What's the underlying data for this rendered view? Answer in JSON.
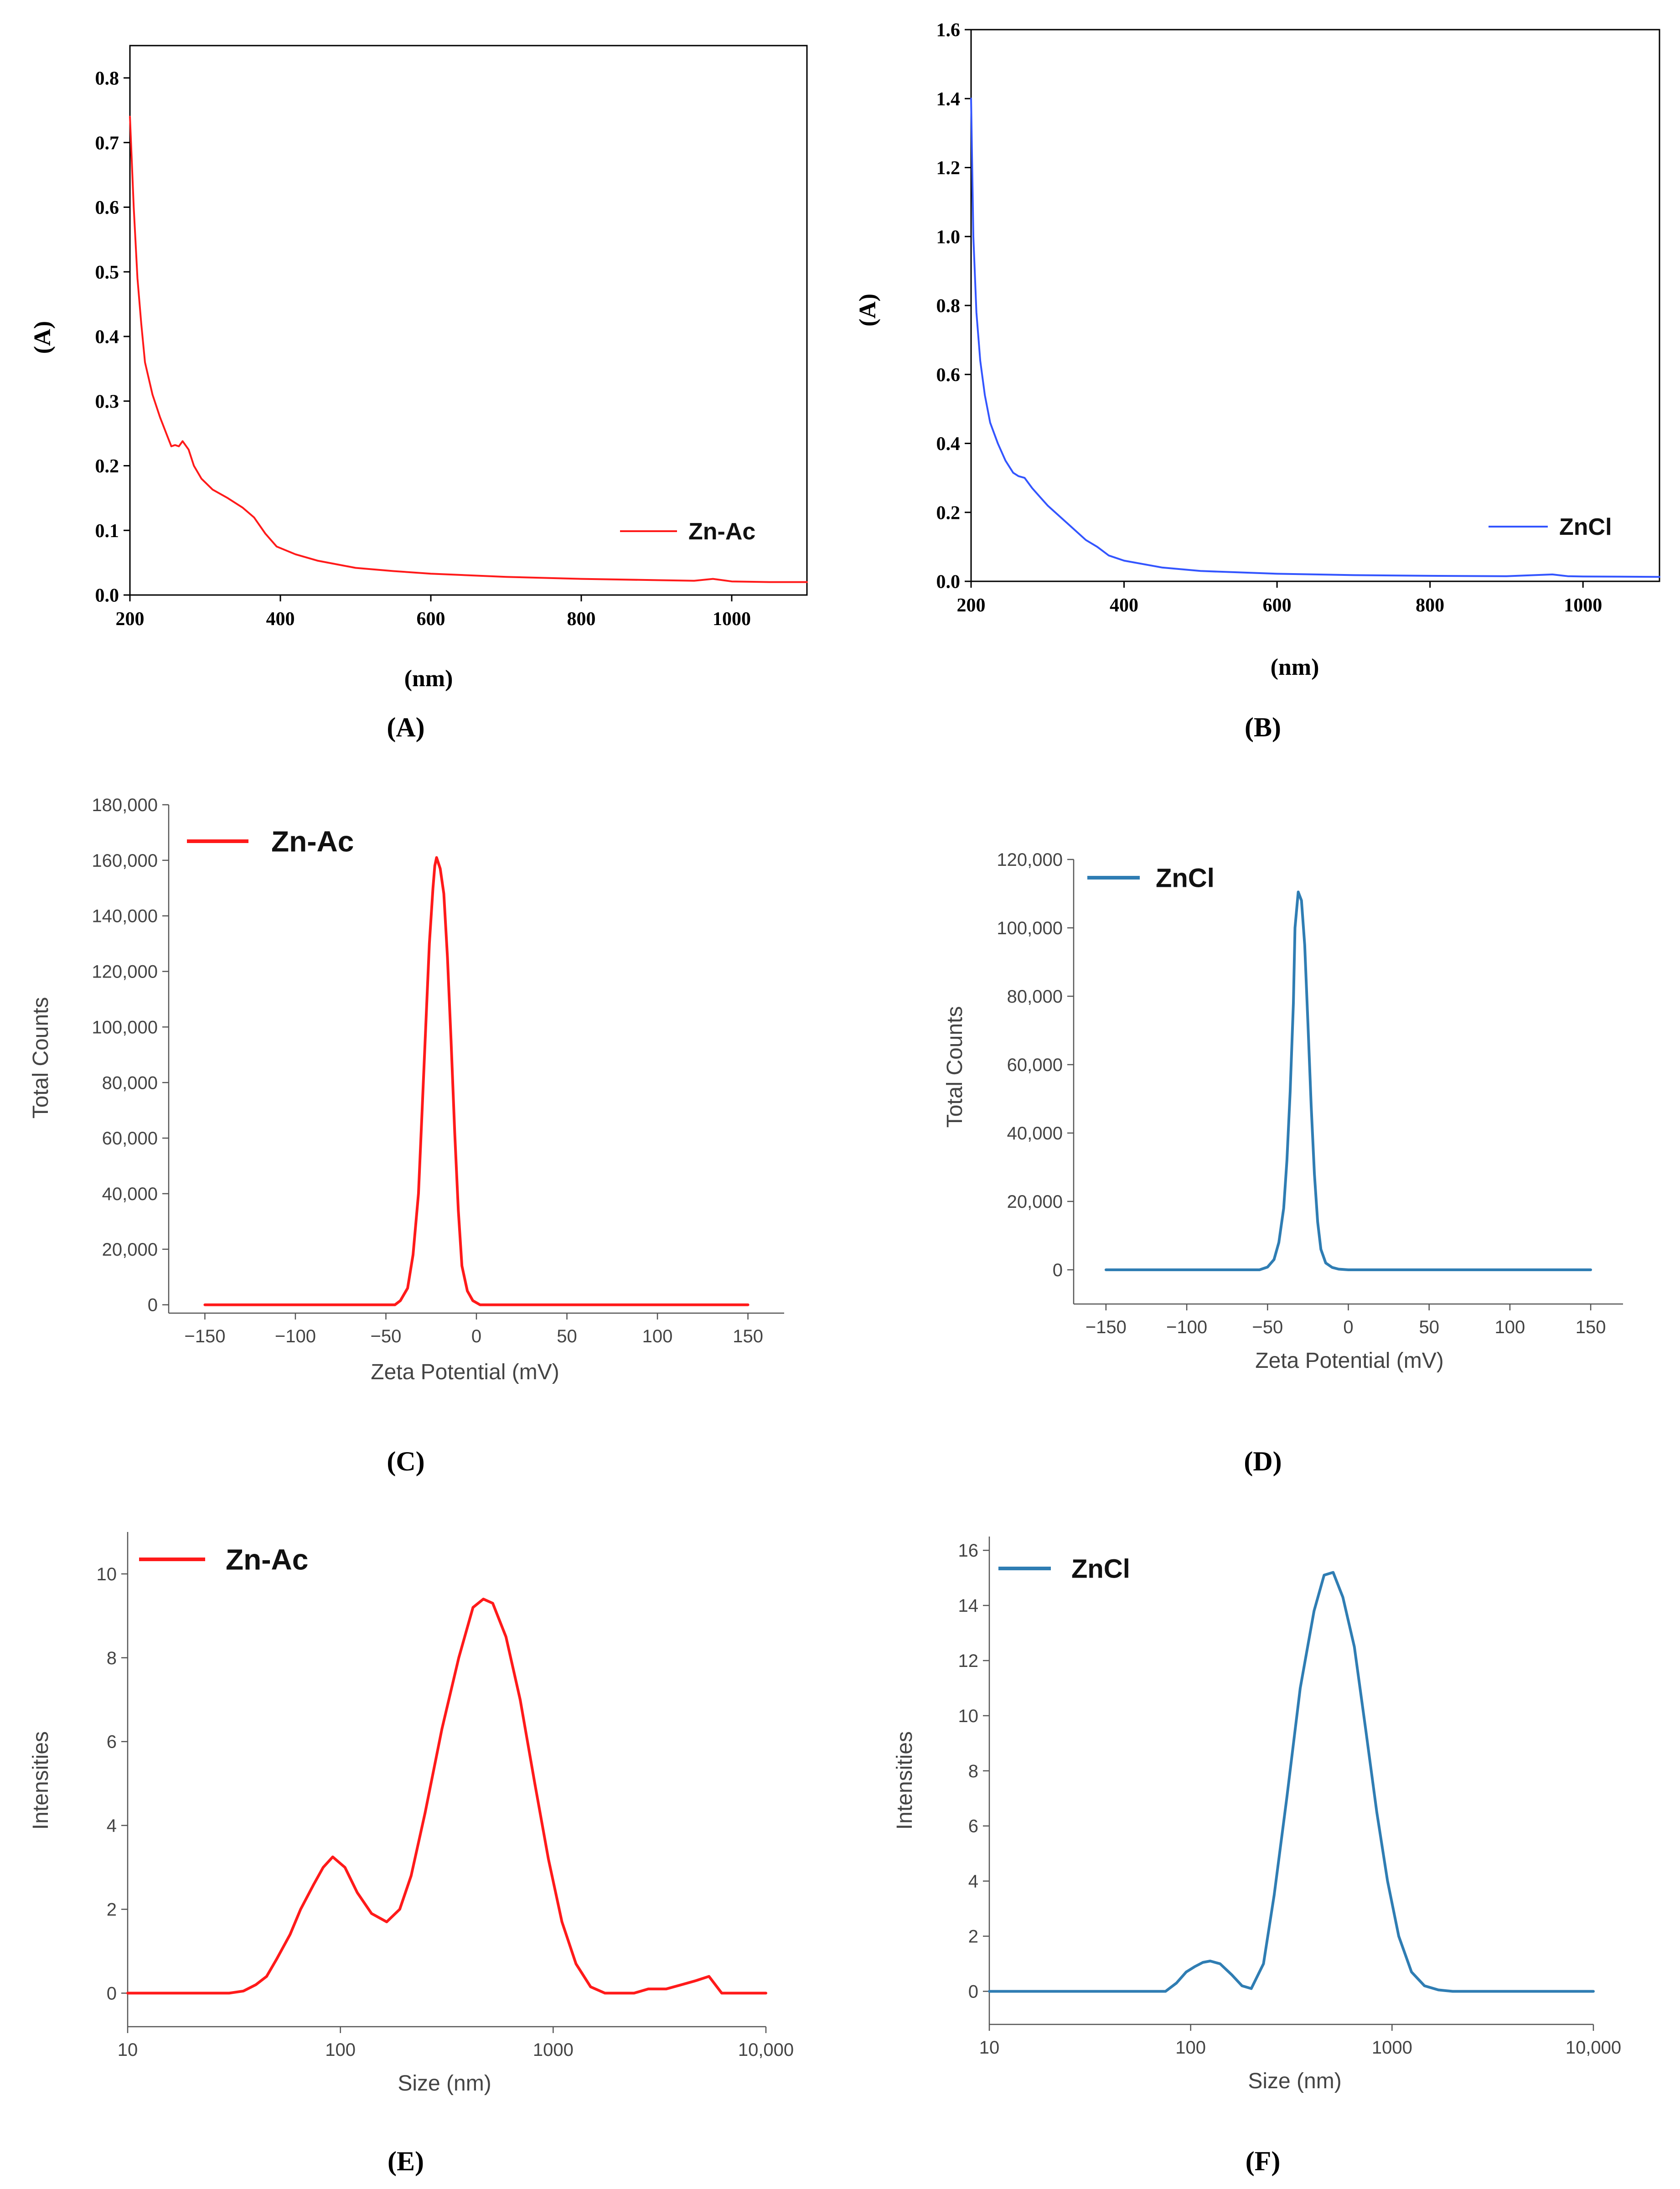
{
  "panels": [
    {
      "letter": "A",
      "caption": "(A)"
    },
    {
      "letter": "B",
      "caption": "(B)"
    },
    {
      "letter": "C",
      "caption": "(C)"
    },
    {
      "letter": "D",
      "caption": "(D)"
    },
    {
      "letter": "E",
      "caption": "(E)"
    },
    {
      "letter": "F",
      "caption": "(F)"
    }
  ],
  "colors": {
    "red": "#ff1a1a",
    "blue": "#3355ff",
    "steel": "#2f7db3",
    "axis": "#000000",
    "grey_axis": "#555555"
  },
  "chart_data": [
    {
      "id": "A",
      "type": "line",
      "title": "",
      "xlabel": "(nm)",
      "ylabel": "(A)",
      "xlim": [
        200,
        1100
      ],
      "ylim": [
        0,
        0.85
      ],
      "xticks": [
        200,
        400,
        600,
        800,
        1000
      ],
      "xtick_labels": [
        "200",
        "400",
        "600",
        "800",
        "1000"
      ],
      "yticks": [
        0.0,
        0.1,
        0.2,
        0.3,
        0.4,
        0.5,
        0.6,
        0.7,
        0.8
      ],
      "ytick_labels": [
        "0.0",
        "0.1",
        "0.2",
        "0.3",
        "0.4",
        "0.5",
        "0.6",
        "0.7",
        "0.8"
      ],
      "legend": {
        "text": "Zn-Ac",
        "position": "right"
      },
      "series": [
        {
          "name": "Zn-Ac",
          "color": "#ff1a1a",
          "x": [
            200,
            205,
            210,
            215,
            220,
            230,
            240,
            250,
            255,
            260,
            265,
            270,
            278,
            285,
            295,
            310,
            330,
            350,
            365,
            380,
            395,
            420,
            450,
            500,
            550,
            600,
            700,
            800,
            900,
            950,
            975,
            1000,
            1050,
            1100
          ],
          "y": [
            0.74,
            0.6,
            0.49,
            0.42,
            0.36,
            0.31,
            0.275,
            0.245,
            0.23,
            0.232,
            0.23,
            0.238,
            0.225,
            0.2,
            0.18,
            0.163,
            0.15,
            0.135,
            0.12,
            0.095,
            0.075,
            0.063,
            0.053,
            0.042,
            0.037,
            0.033,
            0.028,
            0.025,
            0.023,
            0.022,
            0.025,
            0.021,
            0.02,
            0.02
          ]
        }
      ]
    },
    {
      "id": "B",
      "type": "line",
      "title": "",
      "xlabel": "(nm)",
      "ylabel": "(A)",
      "xlim": [
        200,
        1100
      ],
      "ylim": [
        0,
        1.6
      ],
      "xticks": [
        200,
        400,
        600,
        800,
        1000
      ],
      "xtick_labels": [
        "200",
        "400",
        "600",
        "800",
        "1000"
      ],
      "yticks": [
        0.0,
        0.2,
        0.4,
        0.6,
        0.8,
        1.0,
        1.2,
        1.4,
        1.6
      ],
      "ytick_labels": [
        "0.0",
        "0.2",
        "0.4",
        "0.6",
        "0.8",
        "1.0",
        "1.2",
        "1.4",
        "1.6"
      ],
      "legend": {
        "text": "ZnCl",
        "position": "right"
      },
      "series": [
        {
          "name": "ZnCl",
          "color": "#3355ff",
          "x": [
            200,
            203,
            207,
            212,
            218,
            225,
            235,
            245,
            255,
            262,
            270,
            280,
            300,
            325,
            350,
            365,
            380,
            400,
            450,
            500,
            600,
            700,
            800,
            900,
            960,
            980,
            1000,
            1100
          ],
          "y": [
            1.4,
            1.0,
            0.78,
            0.64,
            0.54,
            0.46,
            0.4,
            0.35,
            0.315,
            0.305,
            0.3,
            0.27,
            0.22,
            0.17,
            0.12,
            0.1,
            0.075,
            0.06,
            0.04,
            0.03,
            0.022,
            0.018,
            0.016,
            0.015,
            0.02,
            0.015,
            0.014,
            0.013
          ]
        }
      ]
    },
    {
      "id": "C",
      "type": "line",
      "title": "",
      "xlabel": "Zeta Potential (mV)",
      "ylabel": "Total Counts",
      "xlim": [
        -170,
        170
      ],
      "ylim": [
        -3000,
        180000
      ],
      "xticks": [
        -150,
        -100,
        -50,
        0,
        50,
        100,
        150
      ],
      "xtick_labels": [
        "−150",
        "−100",
        "−50",
        "0",
        "50",
        "100",
        "150"
      ],
      "yticks": [
        0,
        20000,
        40000,
        60000,
        80000,
        100000,
        120000,
        140000,
        160000,
        180000
      ],
      "ytick_labels": [
        "0",
        "20,000",
        "40,000",
        "60,000",
        "80,000",
        "100,000",
        "120,000",
        "140,000",
        "160,000",
        "180,000"
      ],
      "legend": {
        "text": "Zn-Ac",
        "position": "top-left"
      },
      "series": [
        {
          "name": "Zn-Ac",
          "color": "#ff1a1a",
          "x": [
            -150,
            -45,
            -42,
            -38,
            -35,
            -32,
            -30,
            -28,
            -26,
            -24,
            -23,
            -22,
            -20,
            -18,
            -16,
            -14,
            -12,
            -10,
            -8,
            -5,
            -2,
            2,
            10,
            150
          ],
          "y": [
            0,
            0,
            1500,
            6000,
            18000,
            40000,
            70000,
            100000,
            130000,
            150000,
            158000,
            161000,
            157000,
            148000,
            125000,
            95000,
            62000,
            34000,
            14000,
            5000,
            1500,
            0,
            0,
            0
          ]
        }
      ]
    },
    {
      "id": "D",
      "type": "line",
      "title": "",
      "xlabel": "Zeta Potential (mV)",
      "ylabel": "Total Counts",
      "xlim": [
        -170,
        170
      ],
      "ylim": [
        -10000,
        120000
      ],
      "xticks": [
        -150,
        -100,
        -50,
        0,
        50,
        100,
        150
      ],
      "xtick_labels": [
        "−150",
        "−100",
        "−50",
        "0",
        "50",
        "100",
        "150"
      ],
      "yticks": [
        0,
        20000,
        40000,
        60000,
        80000,
        100000,
        120000
      ],
      "ytick_labels": [
        "0",
        "20,000",
        "40,000",
        "60,000",
        "80,000",
        "100,000",
        "120,000"
      ],
      "legend": {
        "text": "ZnCl",
        "position": "top-left"
      },
      "series": [
        {
          "name": "ZnCl",
          "color": "#2f7db3",
          "x": [
            -150,
            -55,
            -50,
            -46,
            -43,
            -40,
            -38,
            -36,
            -34,
            -33,
            -31,
            -29,
            -27,
            -25,
            -23,
            -21,
            -19,
            -17,
            -14,
            -10,
            -6,
            0,
            10,
            150
          ],
          "y": [
            0,
            0,
            800,
            3000,
            8000,
            18000,
            32000,
            52000,
            78000,
            100000,
            110500,
            108000,
            95000,
            72000,
            48000,
            28000,
            14000,
            6000,
            2000,
            700,
            200,
            0,
            0,
            0
          ]
        }
      ]
    },
    {
      "id": "E",
      "type": "line",
      "title": "",
      "xlabel": "Size (nm)",
      "ylabel": "Intensities",
      "xscale": "log",
      "xlim": [
        10,
        10000
      ],
      "ylim": [
        -0.8,
        11
      ],
      "xticks": [
        10,
        100,
        1000,
        10000
      ],
      "xtick_labels": [
        "10",
        "100",
        "1000",
        "10,000"
      ],
      "yticks": [
        0,
        2,
        4,
        6,
        8,
        10
      ],
      "ytick_labels": [
        "0",
        "2",
        "4",
        "6",
        "8",
        "10"
      ],
      "legend": {
        "text": "Zn-Ac",
        "position": "top-left"
      },
      "series": [
        {
          "name": "Zn-Ac",
          "color": "#ff1a1a",
          "x": [
            10,
            30,
            35,
            40,
            45,
            50,
            58,
            65,
            75,
            83,
            92,
            105,
            120,
            140,
            165,
            190,
            215,
            250,
            300,
            360,
            420,
            470,
            520,
            600,
            700,
            820,
            950,
            1100,
            1280,
            1500,
            1750,
            2000,
            2400,
            2800,
            3400,
            4000,
            4700,
            5400,
            6200,
            10000
          ],
          "y": [
            0,
            0,
            0.05,
            0.2,
            0.4,
            0.8,
            1.4,
            2.0,
            2.6,
            3.0,
            3.25,
            3.0,
            2.4,
            1.9,
            1.7,
            2.0,
            2.8,
            4.3,
            6.3,
            8.0,
            9.2,
            9.4,
            9.3,
            8.5,
            7.0,
            5.0,
            3.2,
            1.7,
            0.7,
            0.15,
            0,
            0,
            0,
            0.1,
            0.1,
            0.2,
            0.3,
            0.4,
            0,
            0
          ]
        }
      ]
    },
    {
      "id": "F",
      "type": "line",
      "title": "",
      "xlabel": "Size (nm)",
      "ylabel": "Intensities",
      "xscale": "log",
      "xlim": [
        10,
        10000
      ],
      "ylim": [
        -1.2,
        16.5
      ],
      "xticks": [
        10,
        100,
        1000,
        10000
      ],
      "xtick_labels": [
        "10",
        "100",
        "1000",
        "10,000"
      ],
      "yticks": [
        0,
        2,
        4,
        6,
        8,
        10,
        12,
        14,
        16
      ],
      "ytick_labels": [
        "0",
        "2",
        "4",
        "6",
        "8",
        "10",
        "12",
        "14",
        "16"
      ],
      "legend": {
        "text": "ZnCl",
        "position": "top-left"
      },
      "series": [
        {
          "name": "ZnCl",
          "color": "#2f7db3",
          "x": [
            10,
            75,
            85,
            95,
            105,
            115,
            125,
            140,
            160,
            180,
            200,
            230,
            260,
            300,
            350,
            410,
            460,
            510,
            570,
            650,
            740,
            840,
            950,
            1080,
            1250,
            1450,
            1700,
            2000,
            10000
          ],
          "y": [
            0,
            0,
            0.3,
            0.7,
            0.9,
            1.05,
            1.1,
            1.0,
            0.6,
            0.2,
            0.1,
            1.0,
            3.5,
            7.0,
            11.0,
            13.8,
            15.1,
            15.2,
            14.3,
            12.5,
            9.5,
            6.5,
            4.0,
            2.0,
            0.7,
            0.2,
            0.05,
            0,
            0
          ]
        }
      ]
    }
  ]
}
